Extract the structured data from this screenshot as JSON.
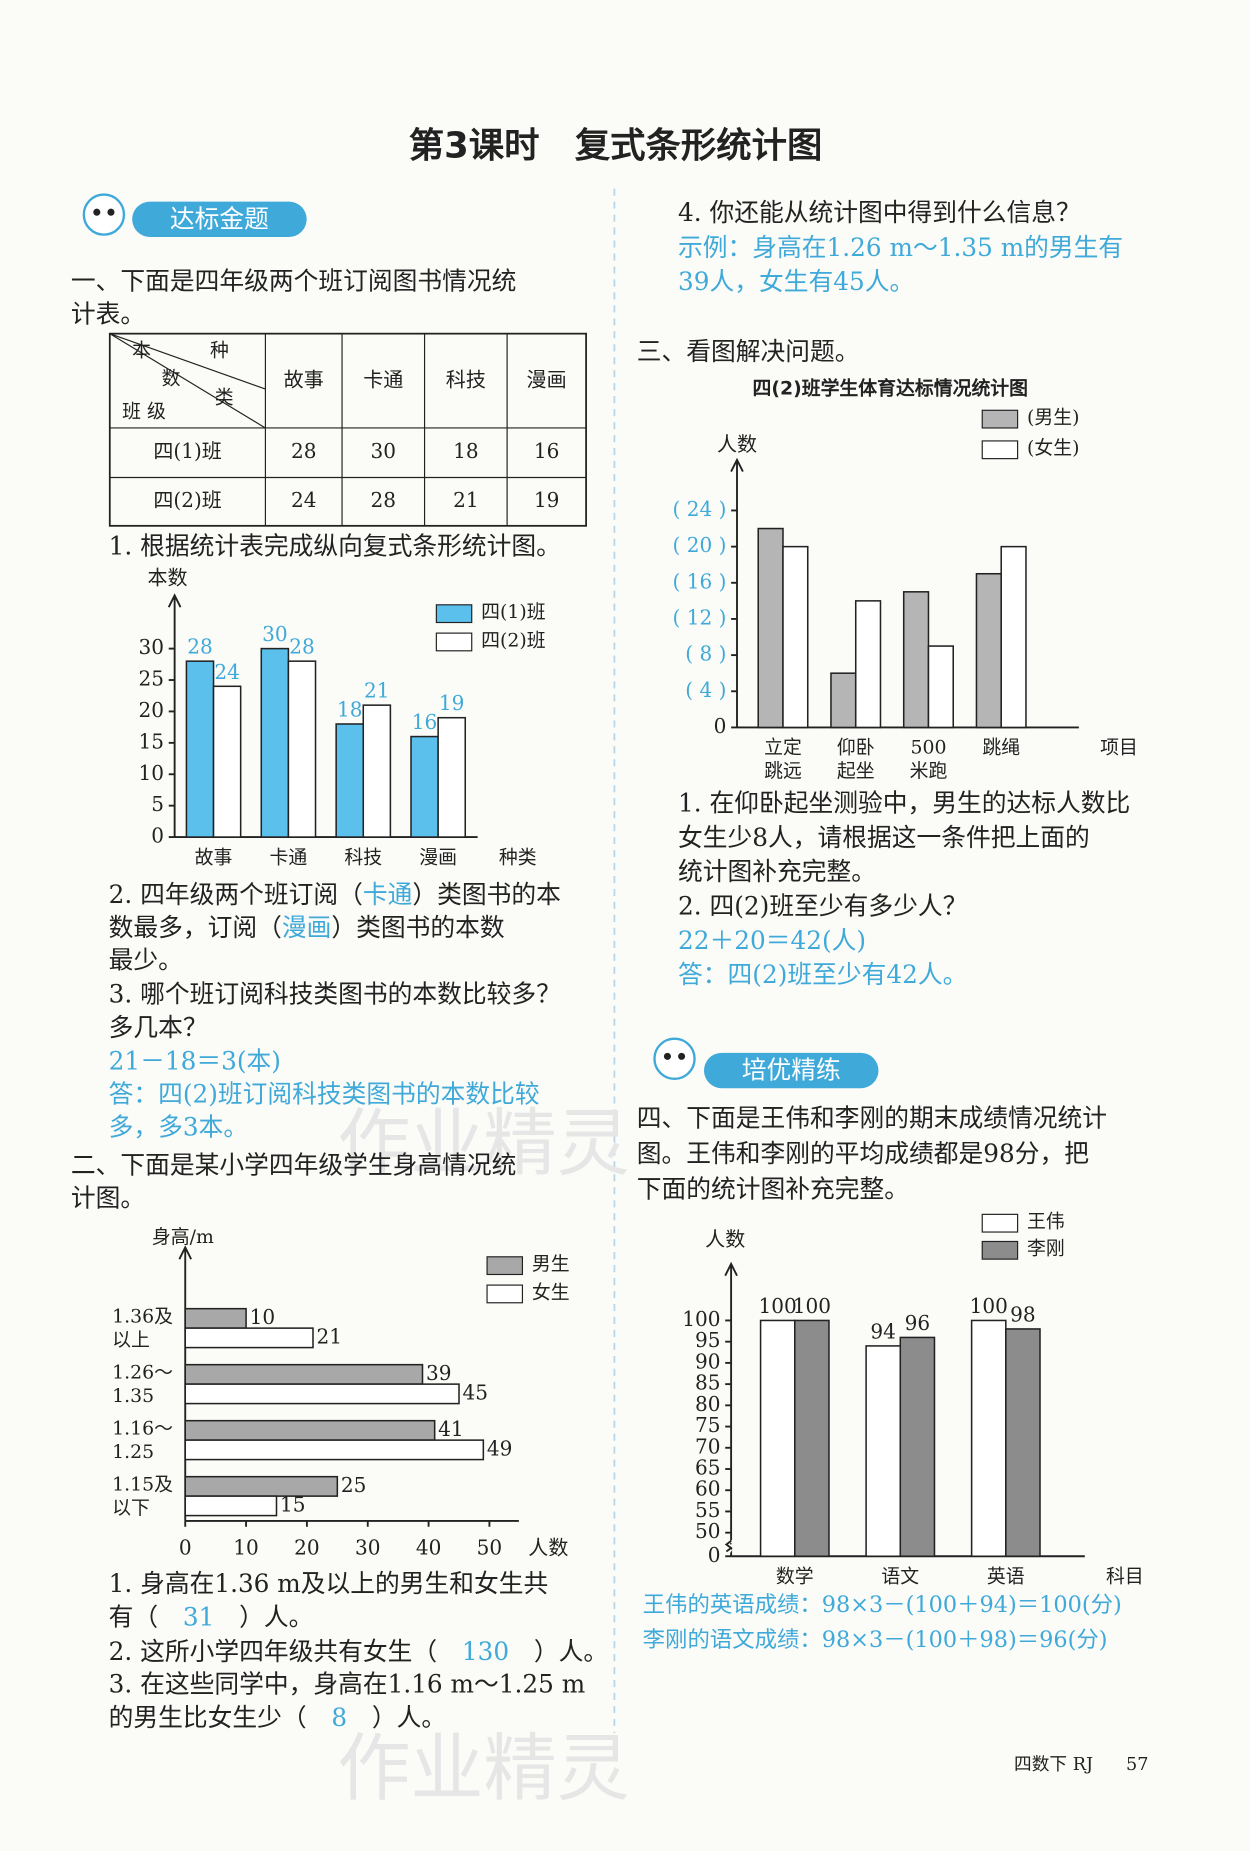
{
  "title": "第3课时　复式条形统计图",
  "badge1": "达标金题",
  "badge2": "培优精练",
  "watermark": "作业精灵",
  "q1": {
    "prompt": [
      "一、下面是四年级两个班订阅图书情况统",
      "计表。"
    ],
    "table": {
      "corner": {
        "top_left": "本",
        "top_right": "种",
        "mid_left": "数",
        "mid_right": "类",
        "bottom": "班 级"
      },
      "headers": [
        "故事",
        "卡通",
        "科技",
        "漫画"
      ],
      "rows": [
        [
          "四(1)班",
          "28",
          "30",
          "18",
          "16"
        ],
        [
          "四(2)班",
          "24",
          "28",
          "21",
          "19"
        ]
      ]
    },
    "sub1": [
      "1. 根据统计表完成纵向复式条形统计图。"
    ],
    "chart": {
      "type": "bar",
      "y_label": "本数",
      "x_label": "种类",
      "categories": [
        "故事",
        "卡通",
        "科技",
        "漫画"
      ],
      "series": [
        {
          "name": "四(1)班",
          "color": "#5bc0eb",
          "values": [
            28,
            30,
            18,
            16
          ]
        },
        {
          "name": "四(2)班",
          "color": "#ffffff",
          "values": [
            24,
            28,
            21,
            19
          ]
        }
      ],
      "ylim": [
        0,
        35
      ],
      "yticks": [
        0,
        5,
        10,
        15,
        20,
        25,
        30
      ],
      "show_values": true
    },
    "sub2": [
      [
        "2. 四年级两个班订阅（",
        {
          "answer": "卡通"
        },
        "）类图书的本"
      ],
      [
        "数最多，订阅（",
        {
          "answer": "漫画"
        },
        "）类图书的本数"
      ],
      "最少。"
    ],
    "sub3": [
      "3. 哪个班订阅科技类图书的本数比较多？",
      "多几本？",
      [
        {
          "answer": "21－18＝3(本)"
        }
      ],
      [
        {
          "answer": "答：四(2)班订阅科技类图书的本数比较"
        }
      ],
      [
        {
          "answer": "多，多3本。"
        }
      ]
    ]
  },
  "q2": {
    "prompt": [
      "二、下面是某小学四年级学生身高情况统",
      "计图。"
    ],
    "chart": {
      "type": "hbar",
      "y_label": "身高/m",
      "x_label": "人数",
      "categories": [
        [
          "1.36及",
          "以上"
        ],
        [
          "1.26～",
          "1.35"
        ],
        [
          "1.16～",
          "1.25"
        ],
        [
          "1.15及",
          "以下"
        ]
      ],
      "series": [
        {
          "name": "男生",
          "color": "#a8a8a8",
          "values": [
            10,
            39,
            41,
            25
          ]
        },
        {
          "name": "女生",
          "color": "#ffffff",
          "values": [
            21,
            45,
            49,
            15
          ]
        }
      ],
      "xlim": [
        0,
        55
      ],
      "xticks": [
        0,
        10,
        20,
        30,
        40,
        50
      ],
      "show_values": true
    },
    "sub1": [
      "1. 身高在1.36 m及以上的男生和女生共",
      [
        "有（　",
        {
          "answer": "31"
        },
        "　）人。"
      ]
    ],
    "sub2": [
      [
        "2. 这所小学四年级共有女生（　",
        {
          "answer": "130"
        },
        "　）人。"
      ]
    ],
    "sub3": [
      "3. 在这些同学中，身高在1.16 m～1.25 m",
      [
        "的男生比女生少（　",
        {
          "answer": "8"
        },
        "　）人。"
      ]
    ],
    "sub4": [
      "4. 你还能从统计图中得到什么信息？",
      [
        {
          "answer": "示例：身高在1.26 m～1.35 m的男生有"
        }
      ],
      [
        {
          "answer": "39人，女生有45人。"
        }
      ]
    ]
  },
  "q3": {
    "prompt": [
      "三、看图解决问题。"
    ],
    "chart": {
      "type": "bar",
      "title": "四(2)班学生体育达标情况统计图",
      "y_label": "人数",
      "x_label": "项目",
      "categories": [
        [
          "立定",
          "跳远"
        ],
        [
          "仰卧",
          "起坐"
        ],
        [
          "500",
          "米跑"
        ],
        [
          "跳绳"
        ]
      ],
      "series": [
        {
          "name": "(男生)",
          "color": "#b5b5b5",
          "values": [
            22,
            6,
            15,
            17
          ]
        },
        {
          "name": "(女生)",
          "color": "#ffffff",
          "values": [
            20,
            14,
            9,
            20
          ]
        }
      ],
      "ylim": [
        0,
        28
      ],
      "yticks": [
        0,
        {
          "value": 4,
          "label": "( 4 )"
        },
        {
          "value": 8,
          "label": "( 8 )"
        },
        {
          "value": 12,
          "label": "( 12 )"
        },
        {
          "value": 16,
          "label": "( 16 )"
        },
        {
          "value": 20,
          "label": "( 20 )"
        },
        {
          "value": 24,
          "label": "( 24 )"
        }
      ],
      "show_values": false
    },
    "sub1": [
      "1. 在仰卧起坐测验中，男生的达标人数比",
      "女生少8人，请根据这一条件把上面的",
      "统计图补充完整。"
    ],
    "sub2": [
      "2. 四(2)班至少有多少人？",
      [
        {
          "answer": "22＋20＝42(人)"
        }
      ],
      [
        {
          "answer": "答：四(2)班至少有42人。"
        }
      ]
    ]
  },
  "q4": {
    "prompt": [
      "四、下面是王伟和李刚的期末成绩情况统计",
      "图。王伟和李刚的平均成绩都是98分，把",
      "下面的统计图补充完整。"
    ],
    "chart": {
      "type": "bar",
      "y_label": "人数",
      "x_label": "科目",
      "categories": [
        "数学",
        "语文",
        "英语"
      ],
      "series": [
        {
          "name": "王伟",
          "color": "#ffffff",
          "values": [
            100,
            94,
            100
          ]
        },
        {
          "name": "李刚",
          "color": "#8c8c8c",
          "values": [
            100,
            96,
            98
          ]
        }
      ],
      "ylim": [
        0,
        100
      ],
      "axis_break": [
        0,
        50
      ],
      "yticks": [
        0,
        50,
        55,
        60,
        65,
        70,
        75,
        80,
        85,
        90,
        95,
        100
      ],
      "show_values": true
    },
    "answers": [
      [
        {
          "answer": "王伟的英语成绩：98×3－(100＋94)＝100(分)"
        }
      ],
      [
        {
          "answer": "李刚的语文成绩：98×3－(100＋98)＝96(分)"
        }
      ]
    ]
  },
  "footer": {
    "book": "四数下 RJ",
    "page": "57"
  }
}
